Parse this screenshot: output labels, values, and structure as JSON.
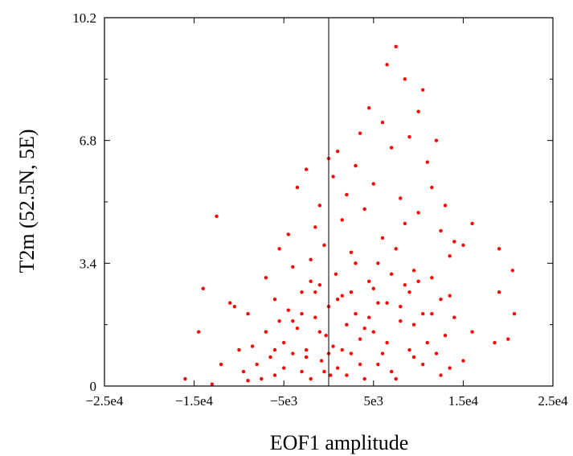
{
  "chart_data": {
    "type": "scatter",
    "title": "",
    "xlabel": "EOF1 amplitude",
    "ylabel": "T2m (52.5N, 5E)",
    "xlim": [
      -25000,
      25000
    ],
    "ylim": [
      0,
      10.2
    ],
    "x_ticks": [
      -25000,
      -15000,
      -5000,
      5000,
      15000,
      25000
    ],
    "x_tick_labels": [
      "−2.5e4",
      "−1.5e4",
      "−5e3",
      "5e3",
      "1.5e4",
      "2.5e4"
    ],
    "y_ticks": [
      0,
      3.4,
      6.8,
      10.2
    ],
    "y_tick_labels": [
      "0",
      "3.4",
      "6.8",
      "10.2"
    ],
    "reference_line_x": 0,
    "marker_color": "#ff0000",
    "grid": false,
    "legend": "none",
    "series": [
      {
        "points": [
          [
            -16000,
            0.2
          ],
          [
            -14500,
            1.5
          ],
          [
            -14000,
            2.7
          ],
          [
            -13000,
            0.05
          ],
          [
            -12500,
            4.7
          ],
          [
            -12000,
            0.6
          ],
          [
            -11000,
            2.3
          ],
          [
            -10500,
            2.2
          ],
          [
            -10000,
            1.0
          ],
          [
            -9500,
            0.4
          ],
          [
            -9000,
            2.0
          ],
          [
            -9000,
            0.15
          ],
          [
            -8500,
            1.1
          ],
          [
            -8000,
            0.6
          ],
          [
            -7500,
            0.2
          ],
          [
            -7000,
            1.5
          ],
          [
            -7000,
            3.0
          ],
          [
            -6500,
            0.8
          ],
          [
            -6000,
            2.4
          ],
          [
            -6000,
            0.3
          ],
          [
            -5500,
            1.8
          ],
          [
            -5500,
            3.8
          ],
          [
            -5000,
            1.2
          ],
          [
            -5000,
            0.5
          ],
          [
            -4500,
            4.2
          ],
          [
            -4500,
            2.1
          ],
          [
            -4000,
            0.9
          ],
          [
            -4000,
            3.3
          ],
          [
            -3500,
            5.5
          ],
          [
            -3500,
            1.6
          ],
          [
            -3000,
            0.4
          ],
          [
            -3000,
            2.6
          ],
          [
            -2500,
            6.0
          ],
          [
            -2500,
            1.0
          ],
          [
            -2000,
            3.5
          ],
          [
            -2000,
            0.2
          ],
          [
            -1500,
            4.4
          ],
          [
            -1500,
            1.9
          ],
          [
            -1000,
            5.0
          ],
          [
            -1000,
            2.8
          ],
          [
            -800,
            0.7
          ],
          [
            -500,
            3.9
          ],
          [
            -300,
            1.4
          ],
          [
            0,
            6.3
          ],
          [
            0,
            2.2
          ],
          [
            200,
            0.3
          ],
          [
            500,
            5.8
          ],
          [
            500,
            1.1
          ],
          [
            800,
            3.1
          ],
          [
            1000,
            6.5
          ],
          [
            1000,
            0.5
          ],
          [
            1500,
            4.6
          ],
          [
            1500,
            2.5
          ],
          [
            2000,
            1.7
          ],
          [
            2000,
            5.3
          ],
          [
            2500,
            0.9
          ],
          [
            2500,
            3.7
          ],
          [
            3000,
            6.1
          ],
          [
            3000,
            2.0
          ],
          [
            3500,
            7.0
          ],
          [
            3500,
            1.3
          ],
          [
            4000,
            4.9
          ],
          [
            4000,
            0.2
          ],
          [
            4500,
            7.7
          ],
          [
            4500,
            2.9
          ],
          [
            5000,
            5.6
          ],
          [
            5000,
            1.5
          ],
          [
            5500,
            3.4
          ],
          [
            5500,
            0.6
          ],
          [
            6000,
            7.3
          ],
          [
            6000,
            4.1
          ],
          [
            6500,
            8.9
          ],
          [
            6500,
            2.3
          ],
          [
            7000,
            6.6
          ],
          [
            7000,
            0.4
          ],
          [
            7500,
            9.4
          ],
          [
            7500,
            3.8
          ],
          [
            8000,
            5.2
          ],
          [
            8000,
            1.8
          ],
          [
            8500,
            8.5
          ],
          [
            8500,
            4.5
          ],
          [
            9000,
            6.9
          ],
          [
            9000,
            2.6
          ],
          [
            9500,
            3.2
          ],
          [
            9500,
            0.8
          ],
          [
            10000,
            7.6
          ],
          [
            10000,
            4.8
          ],
          [
            10500,
            8.2
          ],
          [
            10500,
            2.0
          ],
          [
            11000,
            6.2
          ],
          [
            11000,
            1.2
          ],
          [
            11500,
            5.5
          ],
          [
            11500,
            3.0
          ],
          [
            12000,
            6.8
          ],
          [
            12000,
            0.9
          ],
          [
            12500,
            4.3
          ],
          [
            12500,
            2.4
          ],
          [
            13000,
            5.0
          ],
          [
            13000,
            1.4
          ],
          [
            13500,
            3.6
          ],
          [
            13500,
            0.5
          ],
          [
            14000,
            4.0
          ],
          [
            14000,
            1.9
          ],
          [
            15000,
            3.9
          ],
          [
            15000,
            0.7
          ],
          [
            16000,
            4.5
          ],
          [
            16000,
            1.5
          ],
          [
            18500,
            1.2
          ],
          [
            19000,
            3.8
          ],
          [
            19000,
            2.6
          ],
          [
            20000,
            1.3
          ],
          [
            20500,
            3.2
          ],
          [
            20700,
            2.0
          ],
          [
            -2000,
            2.9
          ],
          [
            -1000,
            1.5
          ],
          [
            0,
            0.9
          ],
          [
            1000,
            2.4
          ],
          [
            2000,
            0.3
          ],
          [
            3000,
            3.4
          ],
          [
            4000,
            1.6
          ],
          [
            5000,
            2.7
          ],
          [
            6000,
            0.9
          ],
          [
            7000,
            3.1
          ],
          [
            8000,
            2.2
          ],
          [
            9000,
            1.0
          ],
          [
            10000,
            2.9
          ],
          [
            -4000,
            1.8
          ],
          [
            -6000,
            1.0
          ],
          [
            -3000,
            2.0
          ],
          [
            1500,
            1.0
          ],
          [
            2500,
            2.6
          ],
          [
            3500,
            0.6
          ],
          [
            4500,
            1.9
          ],
          [
            5500,
            2.3
          ],
          [
            6500,
            1.2
          ],
          [
            7500,
            0.2
          ],
          [
            8500,
            2.8
          ],
          [
            9500,
            1.7
          ],
          [
            10500,
            0.6
          ],
          [
            11500,
            2.0
          ],
          [
            12500,
            0.3
          ],
          [
            13500,
            2.5
          ],
          [
            -500,
            0.4
          ],
          [
            -1500,
            2.6
          ],
          [
            -2500,
            0.8
          ]
        ]
      }
    ]
  }
}
